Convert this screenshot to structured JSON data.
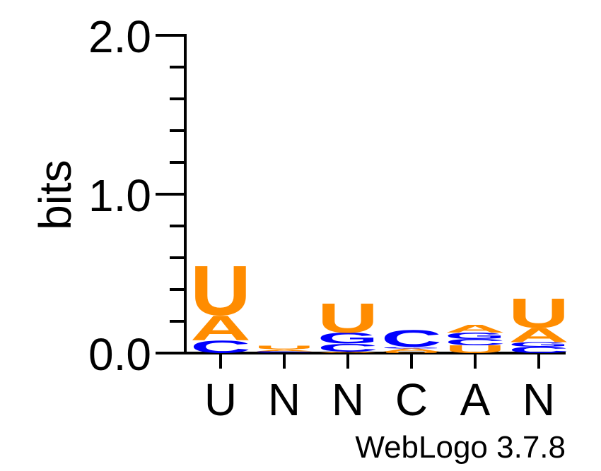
{
  "chart_data": {
    "type": "sequence-logo",
    "ylabel": "bits",
    "ylim": [
      0,
      2
    ],
    "y_tick_labels": [
      "0.0",
      "1.0",
      "2.0"
    ],
    "y_ticks": [
      0,
      1,
      2
    ],
    "y_minor_step": 0.2,
    "colors": {
      "U": "#ff8c00",
      "A": "#ff8c00",
      "C": "#0000ff",
      "G": "#0000ff"
    },
    "positions": [
      {
        "label": "U",
        "stack": [
          {
            "letter": "C",
            "bits": 0.08
          },
          {
            "letter": "A",
            "bits": 0.16
          },
          {
            "letter": "U",
            "bits": 0.32
          }
        ]
      },
      {
        "label": "N",
        "stack": [
          {
            "letter": "G",
            "bits": 0.004
          },
          {
            "letter": "C",
            "bits": 0.008
          },
          {
            "letter": "A",
            "bits": 0.012
          },
          {
            "letter": "U",
            "bits": 0.024
          }
        ]
      },
      {
        "label": "N",
        "stack": [
          {
            "letter": "A",
            "bits": 0.01
          },
          {
            "letter": "C",
            "bits": 0.05
          },
          {
            "letter": "G",
            "bits": 0.07
          },
          {
            "letter": "U",
            "bits": 0.19
          }
        ]
      },
      {
        "label": "C",
        "stack": [
          {
            "letter": "U",
            "bits": 0.01
          },
          {
            "letter": "A",
            "bits": 0.02
          },
          {
            "letter": "G",
            "bits": 0.01
          },
          {
            "letter": "C",
            "bits": 0.11
          }
        ]
      },
      {
        "label": "A",
        "stack": [
          {
            "letter": "U",
            "bits": 0.05
          },
          {
            "letter": "C",
            "bits": 0.04
          },
          {
            "letter": "G",
            "bits": 0.04
          },
          {
            "letter": "A",
            "bits": 0.05
          }
        ]
      },
      {
        "label": "N",
        "stack": [
          {
            "letter": "C",
            "bits": 0.04
          },
          {
            "letter": "G",
            "bits": 0.03
          },
          {
            "letter": "A",
            "bits": 0.09
          },
          {
            "letter": "U",
            "bits": 0.19
          }
        ]
      }
    ]
  },
  "footer": {
    "credit": "WebLogo 3.7.8"
  }
}
